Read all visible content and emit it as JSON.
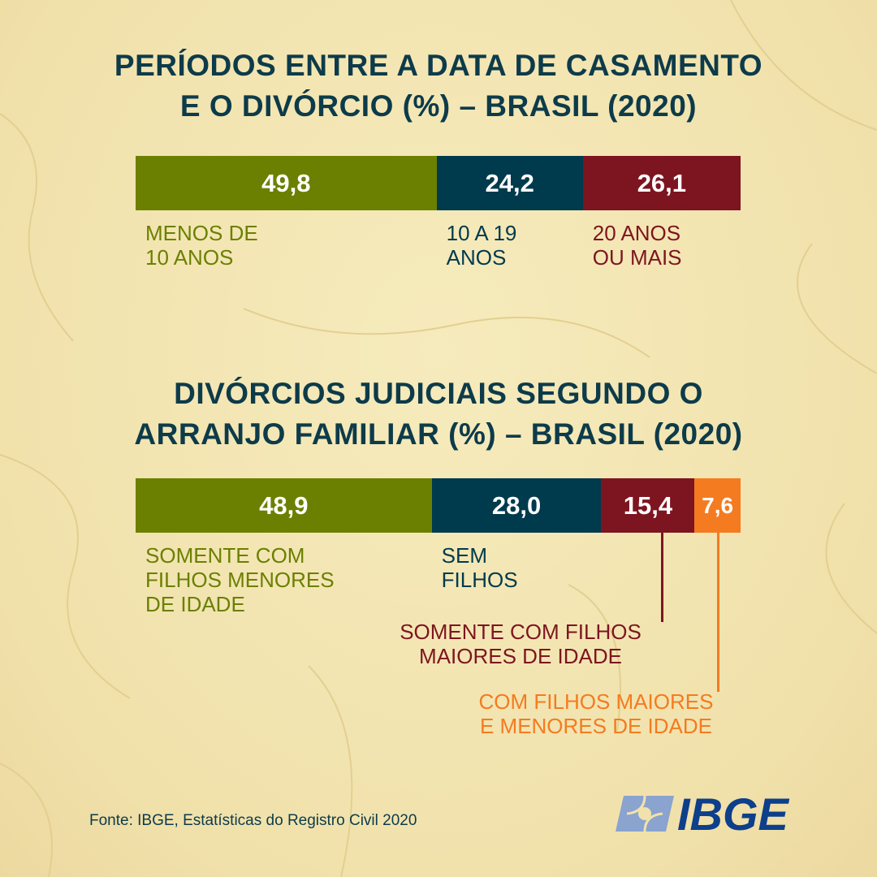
{
  "colors": {
    "green": "#6b8000",
    "navy": "#003a4d",
    "red": "#7d1520",
    "orange": "#f47b20",
    "title": "#0d3b4a",
    "logo": "#0d3f8a",
    "logo_light": "#8aa3cf"
  },
  "chart_data": [
    {
      "type": "bar",
      "orientation": "horizontal-stacked",
      "title": "PERÍODOS ENTRE A DATA DE CASAMENTO\nE O DIVÓRCIO (%) – BRASIL (2020)",
      "categories": [
        "MENOS DE\n10 ANOS",
        "10 A 19\nANOS",
        "20 ANOS\nOU MAIS"
      ],
      "values": [
        49.8,
        24.2,
        26.1
      ],
      "value_labels": [
        "49,8",
        "24,2",
        "26,1"
      ],
      "colors": [
        "#6b8000",
        "#003a4d",
        "#7d1520"
      ]
    },
    {
      "type": "bar",
      "orientation": "horizontal-stacked",
      "title": "DIVÓRCIOS JUDICIAIS SEGUNDO O\nARRANJO FAMILIAR (%) – BRASIL (2020)",
      "categories": [
        "SOMENTE COM\nFILHOS MENORES\nDE IDADE",
        "SEM\nFILHOS",
        "SOMENTE COM FILHOS\nMAIORES DE IDADE",
        "COM FILHOS MAIORES\nE MENORES DE IDADE"
      ],
      "values": [
        48.9,
        28.0,
        15.4,
        7.6
      ],
      "value_labels": [
        "48,9",
        "28,0",
        "15,4",
        "7,6"
      ],
      "colors": [
        "#6b8000",
        "#003a4d",
        "#7d1520",
        "#f47b20"
      ]
    }
  ],
  "source": "Fonte: IBGE, Estatísticas do Registro Civil 2020",
  "logo_text": "IBGE"
}
